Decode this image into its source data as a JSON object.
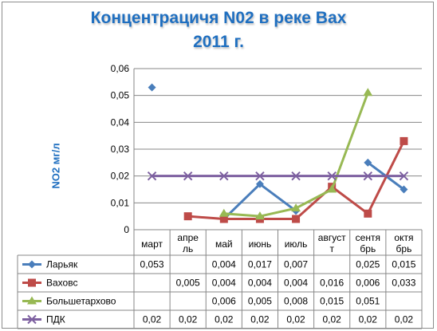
{
  "chart_data": {
    "type": "line",
    "title_lines": [
      "Концентрацичя N02 в реке Вах",
      "2011 г."
    ],
    "ylabel": "NO2 мг/л",
    "xlabel": "",
    "ylim": [
      0,
      0.06
    ],
    "yticks": [
      "0",
      "0,01",
      "0,02",
      "0,03",
      "0,04",
      "0,05",
      "0,06"
    ],
    "yticks_values": [
      0,
      0.01,
      0.02,
      0.03,
      0.04,
      0.05,
      0.06
    ],
    "grid": true,
    "legend": "data-table",
    "categories": [
      [
        "март"
      ],
      [
        "апре",
        "ль"
      ],
      [
        "май"
      ],
      [
        "июнь"
      ],
      [
        "июль"
      ],
      [
        "август",
        "т"
      ],
      [
        "сентя",
        "брь"
      ],
      [
        "октя",
        "брь"
      ]
    ],
    "series": [
      {
        "name": "Ларьяк",
        "color": "#4a7ebb",
        "marker": "diamond",
        "values": [
          0.053,
          null,
          0.004,
          0.017,
          0.007,
          null,
          0.025,
          0.015
        ],
        "labels": [
          "0,053",
          "",
          "0,004",
          "0,017",
          "0,007",
          "",
          "0,025",
          "0,015"
        ]
      },
      {
        "name": "Ваховс",
        "color": "#be4b48",
        "marker": "square",
        "values": [
          null,
          0.005,
          0.004,
          0.004,
          0.004,
          0.016,
          0.006,
          0.033
        ],
        "labels": [
          "",
          "0,005",
          "0,004",
          "0,004",
          "0,004",
          "0,016",
          "0,006",
          "0,033"
        ]
      },
      {
        "name": "Большетархово",
        "color": "#98b954",
        "marker": "triangle",
        "values": [
          null,
          null,
          0.006,
          0.005,
          0.008,
          0.015,
          0.051,
          null
        ],
        "labels": [
          "",
          "",
          "0,006",
          "0,005",
          "0,008",
          "0,015",
          "0,051",
          ""
        ]
      },
      {
        "name": "ПДК",
        "color": "#7d60a0",
        "marker": "x",
        "values": [
          0.02,
          0.02,
          0.02,
          0.02,
          0.02,
          0.02,
          0.02,
          0.02
        ],
        "labels": [
          "0,02",
          "0,02",
          "0,02",
          "0,02",
          "0,02",
          "0,02",
          "0,02",
          "0,02"
        ]
      }
    ]
  }
}
